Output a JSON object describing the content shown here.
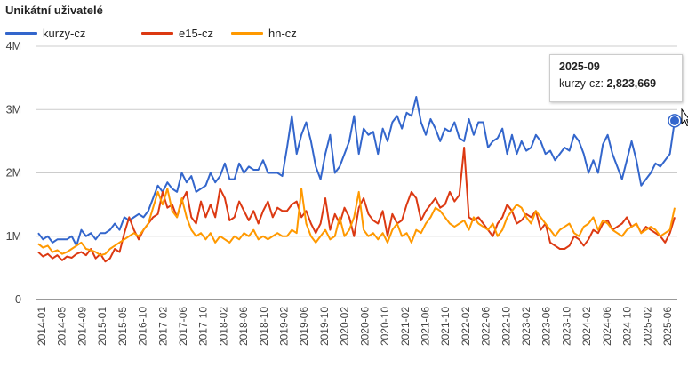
{
  "chart_data": {
    "type": "line",
    "title": "Unikátní uživatelé",
    "xlabel": "",
    "ylabel": "",
    "ylim": [
      0,
      4000000
    ],
    "y_ticks": [
      0,
      1000000,
      2000000,
      3000000,
      4000000
    ],
    "y_tick_labels": [
      "0",
      "1M",
      "2M",
      "3M",
      "4M"
    ],
    "x_tick_labels": [
      "2014-01",
      "2014-05",
      "2014-09",
      "2015-01",
      "2015-05",
      "2016-10",
      "2017-02",
      "2017-06",
      "2017-10",
      "2018-02",
      "2018-06",
      "2018-10",
      "2019-02",
      "2019-06",
      "2019-10",
      "2020-02",
      "2020-06",
      "2020-10",
      "2021-02",
      "2021-06",
      "2021-10",
      "2022-02",
      "2022-06",
      "2022-10",
      "2023-02",
      "2023-06",
      "2023-10",
      "2024-02",
      "2024-06",
      "2024-10",
      "2025-02",
      "2025-06"
    ],
    "legend_position": "top-left",
    "grid": true,
    "series": [
      {
        "name": "kurzy-cz",
        "color": "#3366cc",
        "values": [
          1.05,
          0.95,
          1.0,
          0.9,
          0.95,
          0.95,
          0.95,
          1.0,
          0.85,
          1.1,
          1.0,
          1.05,
          0.95,
          1.05,
          1.05,
          1.1,
          1.2,
          1.1,
          1.3,
          1.25,
          1.3,
          1.35,
          1.3,
          1.4,
          1.6,
          1.8,
          1.7,
          1.85,
          1.75,
          1.7,
          2.0,
          1.85,
          1.95,
          1.7,
          1.75,
          1.8,
          2.0,
          1.85,
          1.95,
          2.15,
          1.9,
          1.9,
          2.15,
          2.0,
          2.1,
          2.05,
          2.05,
          2.2,
          2.0,
          2.0,
          2.0,
          1.95,
          2.4,
          2.9,
          2.3,
          2.6,
          2.8,
          2.5,
          2.1,
          1.9,
          2.3,
          2.6,
          2.0,
          2.1,
          2.3,
          2.5,
          2.9,
          2.3,
          2.7,
          2.6,
          2.65,
          2.3,
          2.7,
          2.5,
          2.8,
          2.9,
          2.7,
          2.95,
          2.9,
          3.2,
          2.8,
          2.6,
          2.85,
          2.7,
          2.5,
          2.7,
          2.65,
          2.8,
          2.55,
          2.5,
          2.85,
          2.6,
          2.8,
          2.8,
          2.4,
          2.5,
          2.55,
          2.7,
          2.3,
          2.6,
          2.3,
          2.5,
          2.35,
          2.4,
          2.6,
          2.5,
          2.3,
          2.35,
          2.2,
          2.3,
          2.4,
          2.35,
          2.6,
          2.5,
          2.3,
          2.0,
          2.2,
          2.0,
          2.45,
          2.6,
          2.3,
          2.1,
          1.9,
          2.2,
          2.5,
          2.2,
          1.8,
          1.9,
          2.0,
          2.15,
          2.1,
          2.2,
          2.3,
          2.823669
        ]
      },
      {
        "name": "e15-cz",
        "color": "#dc3912",
        "values": [
          0.75,
          0.68,
          0.72,
          0.65,
          0.7,
          0.62,
          0.68,
          0.66,
          0.72,
          0.75,
          0.7,
          0.8,
          0.65,
          0.72,
          0.6,
          0.65,
          0.8,
          0.75,
          1.05,
          1.3,
          1.1,
          0.95,
          1.1,
          1.2,
          1.3,
          1.35,
          1.7,
          1.45,
          1.5,
          1.3,
          1.55,
          1.7,
          1.3,
          1.2,
          1.55,
          1.3,
          1.5,
          1.3,
          1.75,
          1.6,
          1.25,
          1.3,
          1.55,
          1.4,
          1.25,
          1.4,
          1.2,
          1.4,
          1.55,
          1.3,
          1.45,
          1.4,
          1.4,
          1.5,
          1.55,
          1.3,
          1.4,
          1.2,
          1.05,
          1.2,
          1.6,
          1.1,
          1.35,
          1.2,
          1.45,
          1.3,
          1.0,
          1.45,
          1.6,
          1.35,
          1.25,
          1.2,
          1.4,
          1.0,
          1.35,
          1.2,
          1.25,
          1.5,
          1.7,
          1.6,
          1.25,
          1.4,
          1.5,
          1.6,
          1.45,
          1.5,
          1.7,
          1.55,
          1.65,
          2.4,
          1.3,
          1.25,
          1.3,
          1.2,
          1.1,
          1.0,
          1.2,
          1.3,
          1.5,
          1.4,
          1.2,
          1.25,
          1.35,
          1.3,
          1.4,
          1.1,
          1.2,
          0.9,
          0.85,
          0.8,
          0.8,
          0.85,
          1.0,
          0.95,
          0.85,
          0.95,
          1.1,
          1.05,
          1.2,
          1.25,
          1.1,
          1.15,
          1.2,
          1.3,
          1.15,
          1.2,
          1.05,
          1.15,
          1.1,
          1.05,
          1.0,
          0.9,
          1.05,
          1.3
        ]
      },
      {
        "name": "hn-cz",
        "color": "#ff9900",
        "values": [
          0.88,
          0.82,
          0.85,
          0.75,
          0.78,
          0.72,
          0.75,
          0.8,
          0.85,
          0.9,
          0.8,
          0.78,
          0.75,
          0.7,
          0.72,
          0.8,
          0.85,
          0.9,
          0.95,
          1.0,
          1.05,
          1.0,
          1.1,
          1.2,
          1.45,
          1.7,
          1.5,
          1.75,
          1.4,
          1.3,
          1.6,
          1.3,
          1.1,
          1.0,
          1.05,
          0.95,
          1.05,
          0.9,
          1.0,
          0.95,
          0.9,
          1.0,
          0.95,
          1.05,
          1.0,
          1.1,
          0.95,
          1.0,
          0.95,
          1.0,
          1.05,
          1.0,
          1.0,
          1.1,
          1.05,
          1.75,
          1.2,
          1.0,
          0.9,
          1.0,
          1.1,
          0.95,
          1.0,
          1.3,
          1.0,
          1.1,
          1.3,
          1.7,
          1.1,
          1.0,
          1.05,
          0.95,
          1.05,
          0.9,
          1.1,
          1.2,
          1.0,
          1.05,
          0.9,
          1.1,
          1.05,
          1.2,
          1.3,
          1.45,
          1.4,
          1.3,
          1.2,
          1.15,
          1.2,
          1.25,
          1.1,
          1.3,
          1.2,
          1.15,
          1.1,
          1.2,
          1.0,
          1.1,
          1.3,
          1.4,
          1.5,
          1.45,
          1.3,
          1.2,
          1.4,
          1.3,
          1.2,
          1.1,
          1.0,
          1.1,
          1.15,
          1.2,
          1.05,
          1.0,
          1.15,
          1.2,
          1.3,
          1.1,
          1.25,
          1.2,
          1.1,
          1.05,
          1.0,
          1.1,
          1.15,
          1.2,
          1.05,
          1.1,
          1.15,
          1.1,
          1.0,
          1.05,
          1.1,
          1.45
        ]
      }
    ],
    "tooltip": {
      "period": "2025-09",
      "series": "kurzy-cz:",
      "value": "2,823,669"
    }
  }
}
